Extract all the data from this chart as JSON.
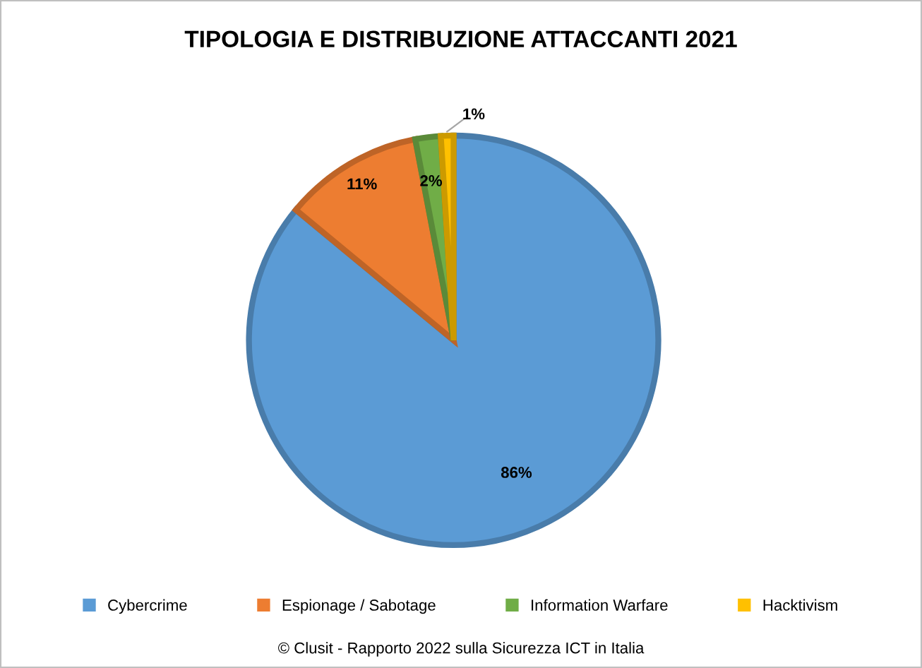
{
  "chart_data": {
    "type": "pie",
    "title": "TIPOLOGIA E DISTRIBUZIONE ATTACCANTI 2021",
    "categories": [
      "Cybercrime",
      "Espionage / Sabotage",
      "Information Warfare",
      "Hacktivism"
    ],
    "values": [
      86,
      11,
      2,
      1
    ],
    "colors": [
      "#5b9bd5",
      "#ed7d31",
      "#70ad47",
      "#ffc000"
    ],
    "value_labels": [
      "86%",
      "11%",
      "2%",
      "1%"
    ],
    "legend": "bottom",
    "annotations": [
      "© Clusit - Rapporto 2022 sulla Sicurezza ICT in Italia"
    ]
  }
}
